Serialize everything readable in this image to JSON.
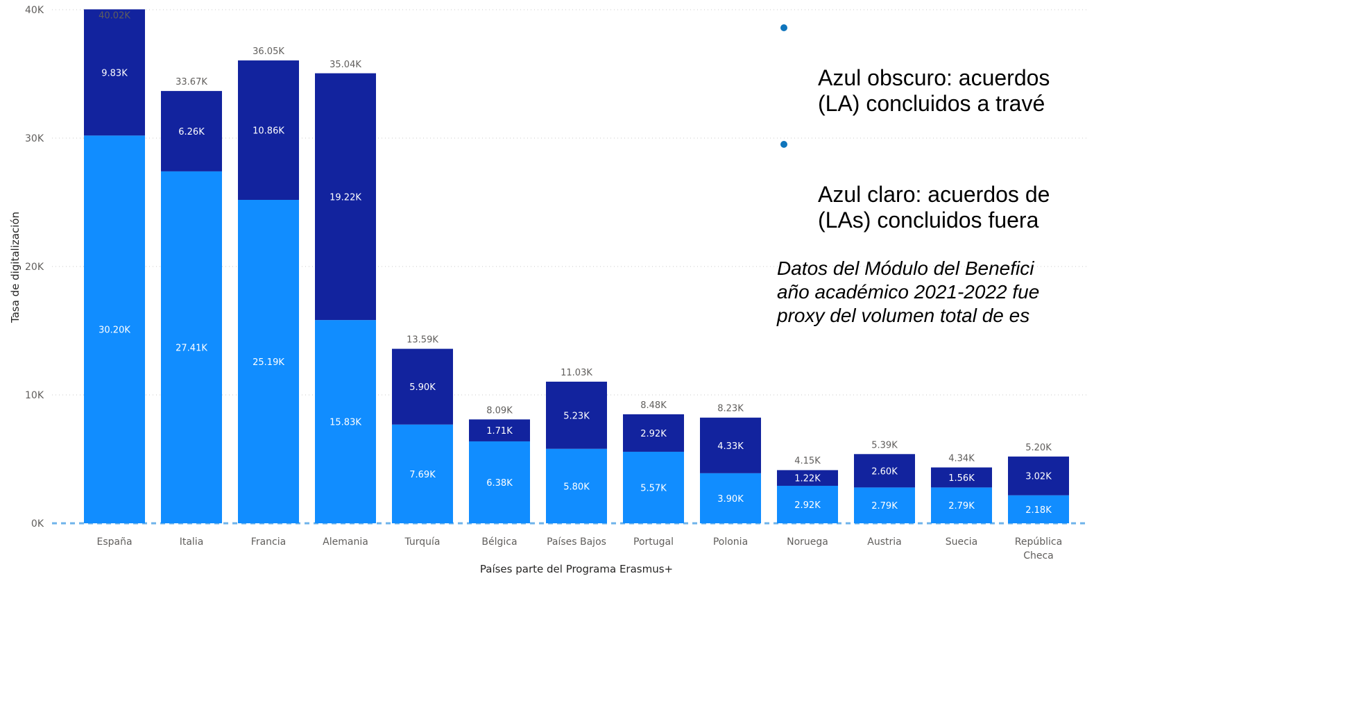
{
  "chart_data": {
    "type": "bar",
    "stacked": true,
    "ylabel": "Tasa de digitalización",
    "xlabel": "Países parte del Programa Erasmus+",
    "ylim": [
      0,
      40000
    ],
    "yticks": [
      {
        "value": 0,
        "label": "0K"
      },
      {
        "value": 10000,
        "label": "10K"
      },
      {
        "value": 20000,
        "label": "20K"
      },
      {
        "value": 30000,
        "label": "30K"
      },
      {
        "value": 40000,
        "label": "40K"
      }
    ],
    "grid": true,
    "categories": [
      "España",
      "Italia",
      "Francia",
      "Alemania",
      "Turquía",
      "Bélgica",
      "Países Bajos",
      "Portugal",
      "Polonia",
      "Noruega",
      "Austria",
      "Suecia",
      "República Checa"
    ],
    "category_labels": [
      [
        "España"
      ],
      [
        "Italia"
      ],
      [
        "Francia"
      ],
      [
        "Alemania"
      ],
      [
        "Turquía"
      ],
      [
        "Bélgica"
      ],
      [
        "Países Bajos"
      ],
      [
        "Portugal"
      ],
      [
        "Polonia"
      ],
      [
        "Noruega"
      ],
      [
        "Austria"
      ],
      [
        "Suecia"
      ],
      [
        "República",
        "Checa"
      ]
    ],
    "series": [
      {
        "color": "#118dff",
        "values": [
          30200,
          27410,
          25190,
          15830,
          7690,
          6380,
          5800,
          5570,
          3900,
          2920,
          2790,
          2790,
          2180
        ],
        "labels": [
          "30.20K",
          "27.41K",
          "25.19K",
          "15.83K",
          "7.69K",
          "6.38K",
          "5.80K",
          "5.57K",
          "3.90K",
          "2.92K",
          "2.79K",
          "2.79K",
          "2.18K"
        ]
      },
      {
        "color": "#12239e",
        "values": [
          9830,
          6260,
          10860,
          19220,
          5900,
          1710,
          5230,
          2920,
          4330,
          1220,
          2600,
          1560,
          3020
        ],
        "labels": [
          "9.83K",
          "6.26K",
          "10.86K",
          "19.22K",
          "5.90K",
          "1.71K",
          "5.23K",
          "2.92K",
          "4.33K",
          "1.22K",
          "2.60K",
          "1.56K",
          "3.02K"
        ]
      }
    ],
    "totals": [
      40020,
      33670,
      36050,
      35040,
      13590,
      8090,
      11030,
      8480,
      8230,
      4150,
      5390,
      4340,
      5200
    ],
    "total_labels": [
      "40.02K",
      "33.67K",
      "36.05K",
      "35.04K",
      "13.59K",
      "8.09K",
      "11.03K",
      "8.48K",
      "8.23K",
      "4.15K",
      "5.39K",
      "4.34K",
      "5.20K"
    ]
  },
  "overlay": {
    "bullets": [
      {
        "text": "Azul obscuro: acuerdos\n(LA) concluidos a travé"
      },
      {
        "text": "Azul claro: acuerdos de\n(LAs) concluidos fuera"
      }
    ],
    "note": "Datos del Módulo del Benefici\naño académico 2021-2022 fue\nproxy del volumen total de es",
    "bullet_color": "#0f75bc"
  }
}
